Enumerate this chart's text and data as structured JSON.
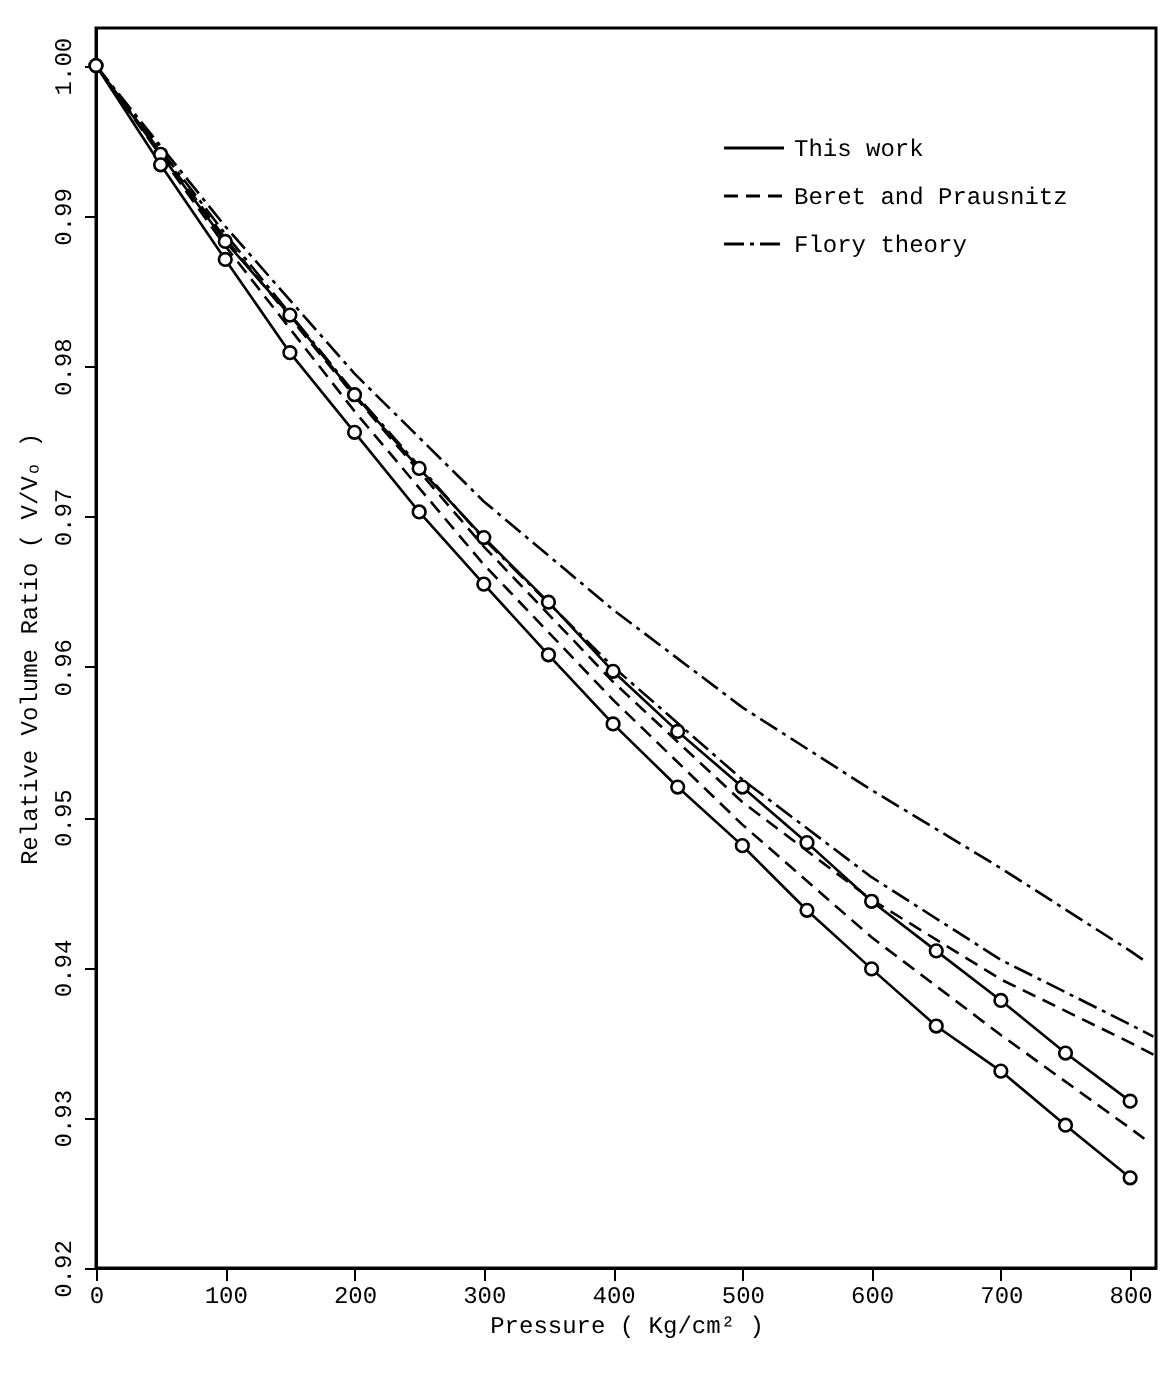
{
  "chart_data": {
    "type": "line",
    "xlabel": "Pressure ( Kg/cm² )",
    "ylabel": "Relative Volume Ratio ( V/Vₒ )",
    "x": [
      0,
      50,
      100,
      150,
      200,
      250,
      300,
      350,
      400,
      450,
      500,
      550,
      600,
      650,
      700,
      750,
      800
    ],
    "xlim": [
      0,
      820
    ],
    "xticks": [
      0,
      100,
      200,
      300,
      400,
      500,
      600,
      700,
      800
    ],
    "ylim": [
      0.92,
      1.0025
    ],
    "yticks": [
      0.92,
      0.93,
      0.94,
      0.95,
      0.96,
      0.97,
      0.98,
      0.99,
      {
        "value": 1,
        "label": "1.00"
      }
    ],
    "legend": "top right",
    "grid": false,
    "series": [
      {
        "name": "This work",
        "color": "#000000",
        "line_style": "solid",
        "marker": "circle",
        "values": [
          1.0,
          0.9941,
          0.9883,
          0.9834,
          0.9781,
          0.9732,
          0.9686,
          0.9643,
          0.9597,
          0.9557,
          0.952,
          0.9483,
          0.9444,
          0.9411,
          0.9378,
          0.9343,
          0.9311
        ]
      },
      {
        "color": "#000000",
        "line_style": "solid",
        "marker": "circle",
        "values": [
          1.0,
          0.9934,
          0.9871,
          0.9809,
          0.9756,
          0.9703,
          0.9655,
          0.9608,
          0.9562,
          0.952,
          0.9481,
          0.9438,
          0.9399,
          0.9361,
          0.9331,
          0.9295,
          0.926
        ]
      },
      {
        "name": "Beret and Prausnitz",
        "color": "#000000",
        "line_style": "dashed",
        "marker": "none",
        "x": [
          0,
          100,
          200,
          300,
          400,
          500,
          600,
          700,
          800,
          818
        ],
        "values": [
          1.0,
          0.9885,
          0.978,
          0.968,
          0.959,
          0.951,
          0.9445,
          0.9392,
          0.935,
          0.9342
        ]
      },
      {
        "color": "#000000",
        "line_style": "dashed",
        "marker": "none",
        "x": [
          0,
          100,
          200,
          300,
          400,
          500,
          600,
          700,
          800,
          811
        ],
        "values": [
          1.0,
          0.988,
          0.977,
          0.9668,
          0.9578,
          0.9495,
          0.942,
          0.9355,
          0.9293,
          0.9286
        ]
      },
      {
        "name": "Flory theory",
        "color": "#000000",
        "line_style": "dashdot",
        "marker": "none",
        "x": [
          0,
          100,
          200,
          300,
          400,
          500,
          600,
          700,
          800,
          810
        ],
        "values": [
          1.0,
          0.9893,
          0.9795,
          0.971,
          0.9638,
          0.9573,
          0.9518,
          0.9466,
          0.9411,
          0.9405
        ]
      },
      {
        "color": "#000000",
        "line_style": "dashdot",
        "marker": "none",
        "x": [
          0,
          100,
          200,
          300,
          400,
          500,
          600,
          700,
          800,
          818
        ],
        "values": [
          1.0,
          0.9888,
          0.9782,
          0.9685,
          0.96,
          0.9525,
          0.946,
          0.9405,
          0.9362,
          0.9354
        ]
      }
    ]
  }
}
